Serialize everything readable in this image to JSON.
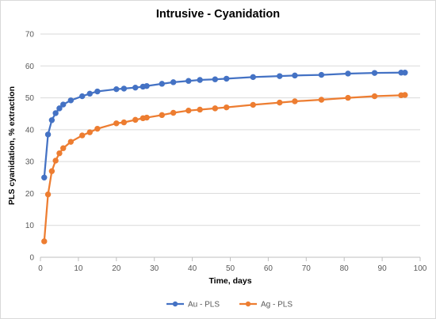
{
  "chart_data": {
    "type": "line",
    "title": "Intrusive - Cyanidation",
    "xlabel": "Time, days",
    "ylabel": "PLS cyanidation, % extraction",
    "xlim": [
      0,
      100
    ],
    "ylim": [
      0,
      70
    ],
    "x_ticks": [
      0,
      10,
      20,
      30,
      40,
      50,
      60,
      70,
      80,
      90,
      100
    ],
    "y_ticks": [
      0,
      10,
      20,
      30,
      40,
      50,
      60,
      70
    ],
    "grid": "horizontal",
    "legend_position": "bottom",
    "series": [
      {
        "name": "Au - PLS",
        "color": "#4472C4",
        "x": [
          1,
          2,
          3,
          4,
          5,
          6,
          8,
          11,
          13,
          15,
          20,
          22,
          25,
          27,
          28,
          32,
          35,
          39,
          42,
          46,
          49,
          56,
          63,
          67,
          74,
          81,
          88,
          95,
          96
        ],
        "y": [
          25.0,
          38.5,
          43.0,
          45.2,
          46.7,
          47.9,
          49.2,
          50.5,
          51.3,
          52.0,
          52.7,
          52.9,
          53.2,
          53.5,
          53.7,
          54.4,
          54.9,
          55.3,
          55.6,
          55.8,
          56.0,
          56.5,
          56.8,
          57.0,
          57.2,
          57.6,
          57.8,
          57.9,
          57.9
        ]
      },
      {
        "name": "Ag - PLS",
        "color": "#ED7D31",
        "x": [
          1,
          2,
          3,
          4,
          5,
          6,
          8,
          11,
          13,
          15,
          20,
          22,
          25,
          27,
          28,
          32,
          35,
          39,
          42,
          46,
          49,
          56,
          63,
          67,
          74,
          81,
          88,
          95,
          96
        ],
        "y": [
          5.0,
          19.7,
          27.0,
          30.3,
          32.6,
          34.2,
          36.2,
          38.2,
          39.2,
          40.3,
          42.0,
          42.3,
          43.1,
          43.6,
          43.8,
          44.6,
          45.3,
          46.0,
          46.3,
          46.7,
          47.0,
          47.8,
          48.5,
          48.9,
          49.4,
          50.0,
          50.5,
          50.8,
          50.9
        ]
      }
    ]
  }
}
